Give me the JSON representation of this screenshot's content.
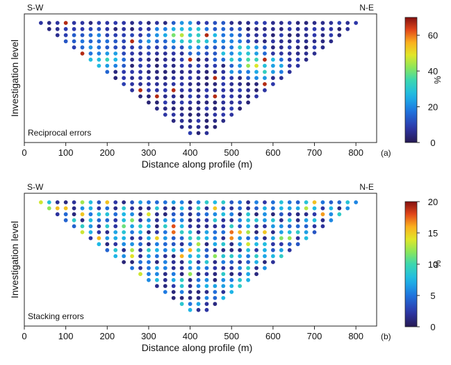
{
  "chart_data": [
    {
      "type": "scatter",
      "panel_label": "(a)",
      "annotation": "Reciprocal errors",
      "left_label": "S-W",
      "right_label": "N-E",
      "xlabel": "Distance along profile (m)",
      "ylabel": "Investigation level",
      "xlim": [
        0,
        850
      ],
      "xticks": [
        "0",
        "100",
        "200",
        "300",
        "400",
        "500",
        "600",
        "700",
        "800"
      ],
      "colorbar": {
        "label": "%",
        "range": [
          0,
          70
        ],
        "ticks": [
          "0",
          "20",
          "40",
          "60"
        ],
        "tick_values": [
          0,
          20,
          40,
          60
        ]
      },
      "pseudosection": {
        "x_start": 40,
        "x_end": 800,
        "x_step": 20,
        "levels": 19
      },
      "points_description": "pseudosection of measured points; color = reciprocal error %",
      "hotspots": [
        {
          "x": 420,
          "level": 3,
          "value": 35
        },
        {
          "x": 460,
          "level": 2,
          "value": 30
        },
        {
          "x": 380,
          "level": 2,
          "value": 45
        },
        {
          "x": 520,
          "level": 5,
          "value": 40
        },
        {
          "x": 560,
          "level": 7,
          "value": 45
        },
        {
          "x": 180,
          "level": 6,
          "value": 35
        },
        {
          "x": 160,
          "level": 3,
          "value": 25
        },
        {
          "x": 300,
          "level": 3,
          "value": 20
        }
      ]
    },
    {
      "type": "scatter",
      "panel_label": "(b)",
      "annotation": "Stacking errors",
      "left_label": "S-W",
      "right_label": "N-E",
      "xlabel": "Distance along profile (m)",
      "ylabel": "Investigation level",
      "xlim": [
        0,
        850
      ],
      "xticks": [
        "0",
        "100",
        "200",
        "300",
        "400",
        "500",
        "600",
        "700",
        "800"
      ],
      "colorbar": {
        "label": "%",
        "range": [
          0,
          20
        ],
        "ticks": [
          "0",
          "5",
          "10",
          "15",
          "20"
        ],
        "tick_values": [
          0,
          5,
          10,
          15,
          20
        ]
      },
      "pseudosection": {
        "x_start": 40,
        "x_end": 800,
        "x_step": 20,
        "levels": 19
      },
      "points_description": "pseudosection of measured points; color = stacking error %"
    }
  ]
}
